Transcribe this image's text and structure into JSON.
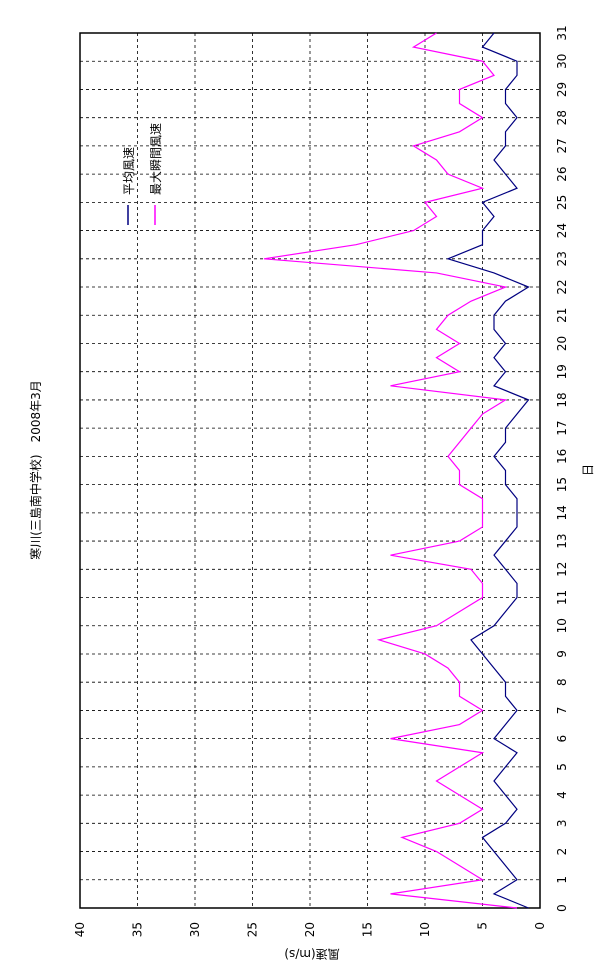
{
  "chart_data": {
    "type": "line",
    "title": "寒川(三島南中学校)　2008年3月",
    "x_label": "日",
    "y_label": "風速(m/s)",
    "orientation": "rotated",
    "xlim": [
      0,
      31
    ],
    "xticks": [
      0,
      1,
      2,
      3,
      4,
      5,
      6,
      7,
      8,
      9,
      10,
      11,
      12,
      13,
      14,
      15,
      16,
      17,
      18,
      19,
      20,
      21,
      22,
      23,
      24,
      25,
      26,
      27,
      28,
      29,
      30,
      31
    ],
    "ylim": [
      0,
      40
    ],
    "yticks": [
      0,
      5,
      10,
      15,
      20,
      25,
      30,
      35,
      40
    ],
    "grid": true,
    "legend": "upper-right",
    "x": [
      0,
      0.5,
      1,
      1.5,
      2,
      2.5,
      3,
      3.5,
      4,
      4.5,
      5,
      5.5,
      6,
      6.5,
      7,
      7.5,
      8,
      8.5,
      9,
      9.5,
      10,
      10.5,
      11,
      11.5,
      12,
      12.5,
      13,
      13.5,
      14,
      14.5,
      15,
      15.5,
      16,
      16.5,
      17,
      17.5,
      18,
      18.5,
      19,
      19.5,
      20,
      20.5,
      21,
      21.5,
      22,
      22.5,
      23,
      23.5,
      24,
      24.5,
      25,
      25.5,
      26,
      26.5,
      27,
      27.5,
      28,
      28.5,
      29,
      29.5,
      30,
      30.5,
      31
    ],
    "series": [
      {
        "name": "平均風速",
        "color": "#000080",
        "values": [
          1,
          4,
          2,
          3,
          4,
          5,
          3,
          2,
          3,
          4,
          3,
          2,
          4,
          3,
          2,
          3,
          3,
          4,
          5,
          6,
          4,
          3,
          2,
          2,
          3,
          4,
          3,
          2,
          2,
          2,
          3,
          3,
          4,
          3,
          3,
          2,
          1,
          4,
          3,
          4,
          3,
          4,
          4,
          3,
          1,
          4,
          8,
          5,
          5,
          4,
          5,
          2,
          3,
          4,
          3,
          3,
          2,
          3,
          3,
          2,
          2,
          5,
          4
        ]
      },
      {
        "name": "最大瞬間風速",
        "color": "#ff00ff",
        "values": [
          2,
          13,
          5,
          7,
          9,
          12,
          7,
          5,
          7,
          9,
          7,
          5,
          13,
          7,
          5,
          7,
          7,
          8,
          10,
          14,
          9,
          7,
          5,
          5,
          6,
          13,
          7,
          5,
          5,
          5,
          7,
          7,
          8,
          7,
          6,
          5,
          3,
          13,
          7,
          9,
          7,
          9,
          8,
          6,
          3,
          9,
          24,
          16,
          11,
          9,
          10,
          5,
          8,
          9,
          11,
          7,
          5,
          7,
          7,
          4,
          5,
          11,
          9
        ]
      }
    ]
  }
}
